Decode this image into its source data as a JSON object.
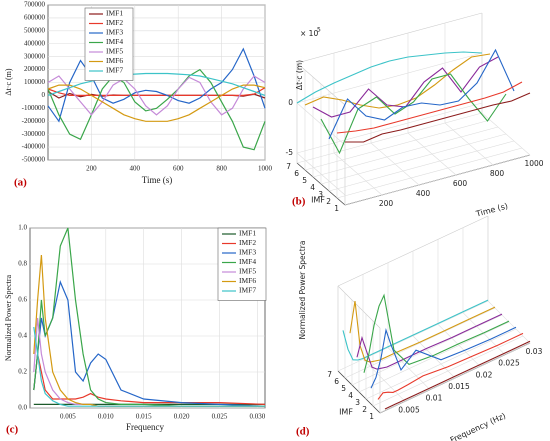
{
  "chart_data": [
    {
      "type": "line",
      "label": "(a)",
      "x_label": "Time (s)",
      "y_label": "Δt·c (m)",
      "x": [
        0,
        50,
        100,
        150,
        200,
        250,
        300,
        350,
        400,
        450,
        500,
        550,
        600,
        650,
        700,
        750,
        800,
        850,
        900,
        950,
        1000
      ],
      "xlim": [
        0,
        1000
      ],
      "xticks": [
        200,
        400,
        600,
        800,
        1000
      ],
      "ylim": [
        -500000,
        700000
      ],
      "yticks": [
        -500000,
        -400000,
        -300000,
        -200000,
        -100000,
        0,
        100000,
        200000,
        300000,
        400000,
        500000,
        600000,
        700000
      ],
      "grid": true,
      "legend": "upper center",
      "series": [
        {
          "name": "IMF1",
          "color": "#8b1c1c",
          "values": [
            30000,
            -20000,
            15000,
            -10000,
            8000,
            -5000,
            3000,
            0,
            0,
            0,
            0,
            0,
            0,
            0,
            0,
            0,
            0,
            0,
            -5000,
            10000,
            -20000
          ]
        },
        {
          "name": "IMF2",
          "color": "#e8392b",
          "values": [
            50000,
            20000,
            0,
            0,
            0,
            0,
            0,
            0,
            0,
            0,
            0,
            0,
            0,
            0,
            0,
            0,
            0,
            0,
            0,
            10000,
            60000
          ]
        },
        {
          "name": "IMF3",
          "color": "#2566c8",
          "values": [
            -80000,
            -200000,
            100000,
            270000,
            150000,
            -20000,
            -60000,
            -30000,
            20000,
            40000,
            30000,
            0,
            -40000,
            -60000,
            -20000,
            50000,
            100000,
            200000,
            360000,
            150000,
            -100000
          ]
        },
        {
          "name": "IMF4",
          "color": "#3aa64a",
          "values": [
            50000,
            -150000,
            -300000,
            -340000,
            -150000,
            50000,
            150000,
            100000,
            -50000,
            -120000,
            -100000,
            -30000,
            50000,
            150000,
            200000,
            100000,
            -50000,
            -200000,
            -400000,
            -420000,
            -200000
          ]
        },
        {
          "name": "IMF5",
          "color": "#c58ad8",
          "values": [
            100000,
            150000,
            50000,
            -50000,
            -150000,
            -50000,
            80000,
            130000,
            50000,
            -80000,
            -150000,
            -80000,
            50000,
            140000,
            100000,
            -50000,
            -150000,
            -100000,
            50000,
            150000,
            100000
          ]
        },
        {
          "name": "IMF6",
          "color": "#d49a12",
          "values": [
            50000,
            80000,
            80000,
            50000,
            0,
            -50000,
            -100000,
            -150000,
            -180000,
            -200000,
            -200000,
            -200000,
            -180000,
            -150000,
            -100000,
            -50000,
            0,
            50000,
            80000,
            80000,
            60000
          ]
        },
        {
          "name": "IMF7",
          "color": "#3cc3c8",
          "values": [
            0,
            30000,
            60000,
            90000,
            110000,
            130000,
            150000,
            160000,
            165000,
            170000,
            170000,
            170000,
            165000,
            160000,
            150000,
            130000,
            110000,
            90000,
            60000,
            30000,
            0
          ]
        }
      ]
    },
    {
      "type": "line3d",
      "label": "(b)",
      "x_label": "Time (s)",
      "y_label": "IMF",
      "z_label": "Δt·c (m)",
      "axis_multiplier": "× 10",
      "axis_multiplier_exponent": "5",
      "x": [
        0,
        100,
        200,
        300,
        400,
        500,
        600,
        700,
        800,
        900,
        1000
      ],
      "xlim": [
        0,
        1000
      ],
      "xticks": [
        200,
        400,
        600,
        800,
        1000
      ],
      "yticks": [
        1,
        2,
        3,
        4,
        5,
        6,
        7
      ],
      "zlim": [
        -6,
        4
      ],
      "zticks": [
        -5,
        0
      ],
      "series": [
        {
          "name": "IMF1",
          "color": "#8b1c1c",
          "values": [
            0.3,
            -0.2,
            0.1,
            0,
            0,
            0,
            0,
            0,
            0,
            -0.1,
            0.2
          ]
        },
        {
          "name": "IMF2",
          "color": "#e8392b",
          "values": [
            0.5,
            0.2,
            0,
            0,
            0,
            0,
            0,
            0,
            0,
            0.1,
            0.6
          ]
        },
        {
          "name": "IMF3",
          "color": "#2566c8",
          "values": [
            -0.8,
            2.7,
            0.5,
            -0.4,
            0.4,
            0.3,
            -0.4,
            -0.5,
            0.8,
            3.6,
            -1
          ]
        },
        {
          "name": "IMF4",
          "color": "#3aa64a",
          "values": [
            0.5,
            -3.4,
            0.5,
            1.2,
            -1,
            -0.3,
            1.5,
            1.5,
            -1.5,
            -4.2,
            -2
          ]
        },
        {
          "name": "IMF5",
          "color": "#8a2a9a",
          "values": [
            1,
            -0.5,
            -0.5,
            1.3,
            -0.8,
            -1.5,
            0.5,
            1.4,
            -1.5,
            0.5,
            1
          ]
        },
        {
          "name": "IMF6",
          "color": "#d49a12",
          "values": [
            0.5,
            0.8,
            0,
            -1,
            -1.8,
            -2,
            -1.8,
            -1,
            0,
            0.8,
            0.6
          ]
        },
        {
          "name": "IMF7",
          "color": "#3cc3c8",
          "values": [
            0,
            0.6,
            1,
            1.3,
            1.6,
            1.7,
            1.6,
            1.3,
            1,
            0.6,
            0
          ]
        }
      ]
    },
    {
      "type": "line",
      "label": "(c)",
      "x_label": "Frequency",
      "y_label": "Normalized Power Spectra",
      "x": [
        0.0005,
        0.001,
        0.0015,
        0.002,
        0.003,
        0.004,
        0.005,
        0.006,
        0.007,
        0.008,
        0.009,
        0.01,
        0.012,
        0.015,
        0.02,
        0.025,
        0.031
      ],
      "xlim": [
        0,
        0.031
      ],
      "xticks": [
        0.005,
        {
          "value": 0.01,
          "label": "0.010"
        },
        0.015,
        {
          "value": 0.02,
          "label": "0.020"
        },
        0.025,
        {
          "value": 0.03,
          "label": "0.030"
        }
      ],
      "ylim": [
        0,
        1
      ],
      "yticks": [
        {
          "value": 0,
          "label": "0.0"
        },
        0.2,
        0.4,
        0.6,
        0.8,
        {
          "value": 1,
          "label": "1.0"
        }
      ],
      "grid": true,
      "legend": "upper right",
      "series": [
        {
          "name": "IMF1",
          "color": "#1c5a2a",
          "values": [
            0.02,
            0.02,
            0.02,
            0.02,
            0.02,
            0.02,
            0.02,
            0.02,
            0.02,
            0.02,
            0.02,
            0.02,
            0.02,
            0.02,
            0.02,
            0.02,
            0.02
          ]
        },
        {
          "name": "IMF2",
          "color": "#e8392b",
          "values": [
            0.1,
            0.3,
            0.2,
            0.1,
            0.05,
            0.05,
            0.05,
            0.05,
            0.06,
            0.08,
            0.06,
            0.05,
            0.04,
            0.03,
            0.03,
            0.03,
            0.02
          ]
        },
        {
          "name": "IMF3",
          "color": "#2566c8",
          "values": [
            0.1,
            0.3,
            0.5,
            0.4,
            0.5,
            0.7,
            0.6,
            0.2,
            0.15,
            0.25,
            0.3,
            0.27,
            0.1,
            0.05,
            0.03,
            0.02,
            0.01
          ]
        },
        {
          "name": "IMF4",
          "color": "#3aa64a",
          "values": [
            0.1,
            0.3,
            0.6,
            0.4,
            0.5,
            0.9,
            1,
            0.6,
            0.3,
            0.1,
            0.05,
            0.03,
            0.02,
            0.02,
            0.01,
            0.01,
            0.01
          ]
        },
        {
          "name": "IMF5",
          "color": "#c58ad8",
          "values": [
            0.2,
            0.5,
            0.3,
            0.2,
            0.1,
            0.05,
            0.03,
            0.02,
            0.02,
            0.02,
            0.01,
            0.01,
            0.01,
            0.01,
            0.01,
            0.01,
            0.01
          ]
        },
        {
          "name": "IMF6",
          "color": "#d49a12",
          "values": [
            0.3,
            0.6,
            0.85,
            0.5,
            0.2,
            0.1,
            0.05,
            0.03,
            0.02,
            0.02,
            0.01,
            0.01,
            0.01,
            0.01,
            0.01,
            0.01,
            0.01
          ]
        },
        {
          "name": "IMF7",
          "color": "#3cc3c8",
          "values": [
            0.45,
            0.3,
            0.15,
            0.08,
            0.04,
            0.02,
            0.01,
            0.01,
            0.01,
            0.01,
            0.01,
            0.01,
            0.01,
            0.01,
            0.01,
            0.01,
            0.01
          ]
        }
      ]
    },
    {
      "type": "line3d",
      "label": "(d)",
      "x_label": "Frequency (Hz)",
      "y_label": "IMF",
      "z_label": "Normalized Power Spectra",
      "x": [
        0.001,
        0.002,
        0.003,
        0.004,
        0.005,
        0.007,
        0.01,
        0.015,
        0.02,
        0.025,
        0.03
      ],
      "xlim": [
        0,
        0.03
      ],
      "xticks": [
        0.005,
        0.01,
        0.015,
        0.02,
        0.025,
        0.03
      ],
      "yticks": [
        1,
        2,
        3,
        4,
        5,
        6,
        7
      ],
      "zlim": [
        0,
        1
      ],
      "series": [
        {
          "name": "IMF1",
          "color": "#8b1c1c",
          "values": [
            0.02,
            0.02,
            0.02,
            0.02,
            0.02,
            0.02,
            0.02,
            0.02,
            0.02,
            0.02,
            0.02
          ]
        },
        {
          "name": "IMF2",
          "color": "#e8392b",
          "values": [
            0.05,
            0.1,
            0.08,
            0.05,
            0.05,
            0.06,
            0.08,
            0.05,
            0.04,
            0.03,
            0.03
          ]
        },
        {
          "name": "IMF3",
          "color": "#2566c8",
          "values": [
            0.1,
            0.2,
            0.4,
            0.7,
            0.5,
            0.15,
            0.3,
            0.05,
            0.03,
            0.02,
            0.02
          ]
        },
        {
          "name": "IMF4",
          "color": "#3aa64a",
          "values": [
            0.2,
            0.4,
            0.7,
            0.9,
            1,
            0.3,
            0.05,
            0.02,
            0.02,
            0.01,
            0.01
          ]
        },
        {
          "name": "IMF5",
          "color": "#8a2a9a",
          "values": [
            0.3,
            0.5,
            0.3,
            0.1,
            0.05,
            0.02,
            0.02,
            0.02,
            0.01,
            0.01,
            0.01
          ]
        },
        {
          "name": "IMF6",
          "color": "#d49a12",
          "values": [
            0.5,
            0.85,
            0.3,
            0.1,
            0.05,
            0.02,
            0.02,
            0.01,
            0.01,
            0.01,
            0.01
          ]
        },
        {
          "name": "IMF7",
          "color": "#3cc3c8",
          "values": [
            0.45,
            0.2,
            0.05,
            0.02,
            0.01,
            0.01,
            0.01,
            0.01,
            0.01,
            0.01,
            0.01
          ]
        }
      ]
    }
  ]
}
